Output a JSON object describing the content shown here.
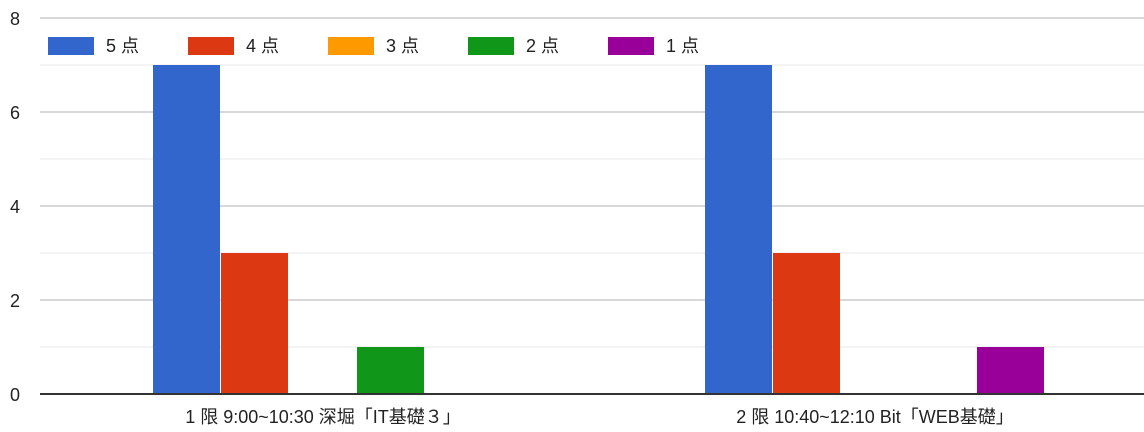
{
  "chart_data": {
    "type": "bar",
    "categories": [
      "1 限 9:00~10:30 深堀「IT基礎３」",
      "2 限 10:40~12:10 Bit「WEB基礎」"
    ],
    "series": [
      {
        "name": "5 点",
        "color": "#3366cc",
        "values": [
          7,
          7
        ]
      },
      {
        "name": "4 点",
        "color": "#dc3912",
        "values": [
          3,
          3
        ]
      },
      {
        "name": "3 点",
        "color": "#ff9900",
        "values": [
          0,
          0
        ]
      },
      {
        "name": "2 点",
        "color": "#109618",
        "values": [
          1,
          0
        ]
      },
      {
        "name": "1 点",
        "color": "#990099",
        "values": [
          0,
          1
        ]
      }
    ],
    "ylim": [
      0,
      8
    ],
    "yticks": [
      0,
      2,
      4,
      6,
      8
    ],
    "grid": true,
    "legend": "top-left"
  }
}
